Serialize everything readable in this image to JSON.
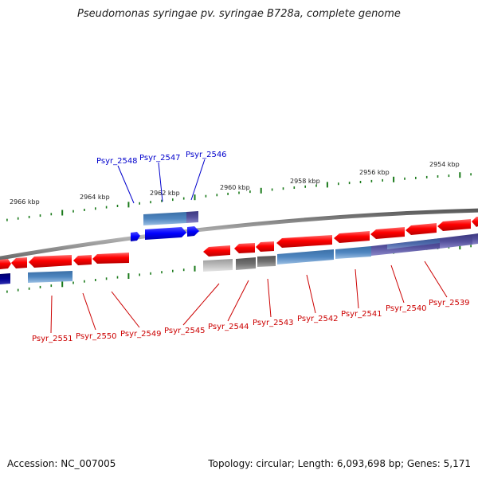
{
  "title": "Pseudomonas syringae pv. syringae B728a, complete genome",
  "footer": {
    "accession": "Accession: NC_007005",
    "topology": "Topology: circular; Length: 6,093,698 bp; Genes: 5,171"
  },
  "colors": {
    "forward_gene": "#0000ff",
    "reverse_gene": "#ff0000",
    "forward_cds": "#3f7fbf",
    "reverse_cds": "#5a8fc8",
    "purple_cds": "#54509c",
    "gray_gene": "#666666",
    "tick": "#1a7a1a",
    "backbone": "#888888",
    "forward_label": "#0000cc",
    "reverse_label": "#cc0000"
  },
  "scale_labels": [
    "2966 kbp",
    "2964 kbp",
    "2962 kbp",
    "2960 kbp",
    "2958 kbp",
    "2956 kbp",
    "2954 kbp"
  ],
  "forward_labels": [
    "Psyr_2548",
    "Psyr_2547",
    "Psyr_2546"
  ],
  "reverse_labels": [
    "Psyr_2551",
    "Psyr_2550",
    "Psyr_2549",
    "Psyr_2545",
    "Psyr_2544",
    "Psyr_2543",
    "Psyr_2542",
    "Psyr_2541",
    "Psyr_2540",
    "Psyr_2539"
  ]
}
